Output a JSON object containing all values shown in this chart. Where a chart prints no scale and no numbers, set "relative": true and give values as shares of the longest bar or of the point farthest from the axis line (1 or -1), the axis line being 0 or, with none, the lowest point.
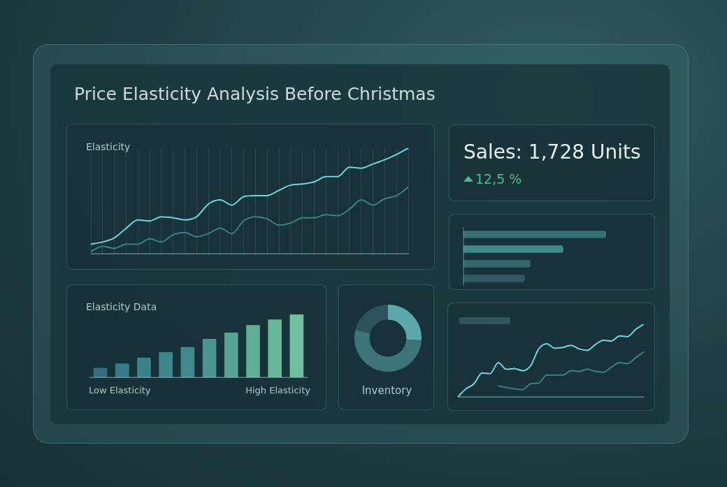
{
  "chart_data": [
    {
      "type": "line",
      "title": "Price Elasticity Analysis Before Christmas",
      "ylabel": "Elasticity",
      "relative": true,
      "grid": "x",
      "categories": [
        null,
        null,
        null,
        null,
        null,
        null,
        null,
        null,
        null,
        null,
        null,
        null,
        null,
        null,
        null,
        null,
        null,
        null,
        null,
        null,
        null,
        null,
        null,
        null,
        null,
        null,
        null,
        null
      ],
      "series": [
        {
          "color": "#6fd6dc",
          "values": [
            0.09,
            0.11,
            0.15,
            0.24,
            0.32,
            0.31,
            0.35,
            0.34,
            0.32,
            0.35,
            0.47,
            0.51,
            0.46,
            0.54,
            0.55,
            0.55,
            0.6,
            0.65,
            0.66,
            0.68,
            0.73,
            0.73,
            0.82,
            0.81,
            0.85,
            0.89,
            0.94,
            1
          ]
        },
        {
          "color": "#3e7f82",
          "values": [
            0.02,
            0.07,
            0.05,
            0.09,
            0.09,
            0.14,
            0.11,
            0.18,
            0.2,
            0.16,
            0.19,
            0.24,
            0.19,
            0.31,
            0.35,
            0.33,
            0.27,
            0.29,
            0.34,
            0.34,
            0.37,
            0.36,
            0.42,
            0.51,
            0.46,
            0.52,
            0.55,
            0.63
          ]
        }
      ]
    },
    {
      "type": "other",
      "title": "Sales: 1,728 Units",
      "annotations": [
        "12,5 %"
      ]
    },
    {
      "type": "bar",
      "orientation": "horizontal",
      "relative": true,
      "categories": [
        null,
        null,
        null,
        null
      ],
      "values": [
        1,
        0.7,
        0.47,
        0.43
      ],
      "colors": [
        "#3a6f72",
        "#3f8a89",
        "#33676b",
        "#2e5a5f"
      ]
    },
    {
      "type": "bar",
      "title": "Elasticity Data",
      "relative": true,
      "categories": [
        null,
        null,
        null,
        null,
        null,
        null,
        null,
        null,
        null,
        null
      ],
      "values": [
        0.15,
        0.22,
        0.31,
        0.4,
        0.48,
        0.61,
        0.71,
        0.83,
        0.92,
        1
      ],
      "colors": [
        "#33707f",
        "#377a87",
        "#3a8189",
        "#3d878c",
        "#40898c",
        "#4a958f",
        "#55a392",
        "#5eaf95",
        "#66b898",
        "#6dc09b"
      ],
      "annotations": [
        "Low Elasticity",
        "High Elasticity"
      ]
    },
    {
      "type": "donut",
      "title": "Inventory",
      "categories": [
        null,
        null,
        null
      ],
      "values": [
        26,
        53,
        21
      ],
      "colors": [
        "#5aa8aa",
        "#3d7478",
        "#2c555b"
      ]
    },
    {
      "type": "line",
      "relative": true,
      "categories": [
        null,
        null,
        null,
        null,
        null,
        null,
        null,
        null,
        null,
        null,
        null,
        null,
        null,
        null,
        null,
        null,
        null,
        null,
        null,
        null,
        null,
        null,
        null,
        null
      ],
      "series": [
        {
          "color": "#6fd6dc",
          "values": [
            0,
            0.11,
            0.18,
            0.33,
            0.32,
            0.47,
            0.38,
            0.39,
            0.36,
            0.43,
            0.66,
            0.73,
            0.67,
            0.68,
            0.71,
            0.66,
            0.64,
            0.72,
            0.78,
            0.77,
            0.84,
            0.83,
            0.93,
            1
          ]
        },
        {
          "color": "#3e7f82",
          "values": [
            null,
            null,
            null,
            null,
            null,
            0.15,
            0.13,
            0.11,
            0.1,
            0.18,
            0.19,
            0.3,
            0.3,
            0.3,
            0.36,
            0.35,
            0.38,
            0.35,
            0.34,
            0.41,
            0.47,
            0.46,
            0.54,
            0.62
          ]
        }
      ]
    }
  ]
}
